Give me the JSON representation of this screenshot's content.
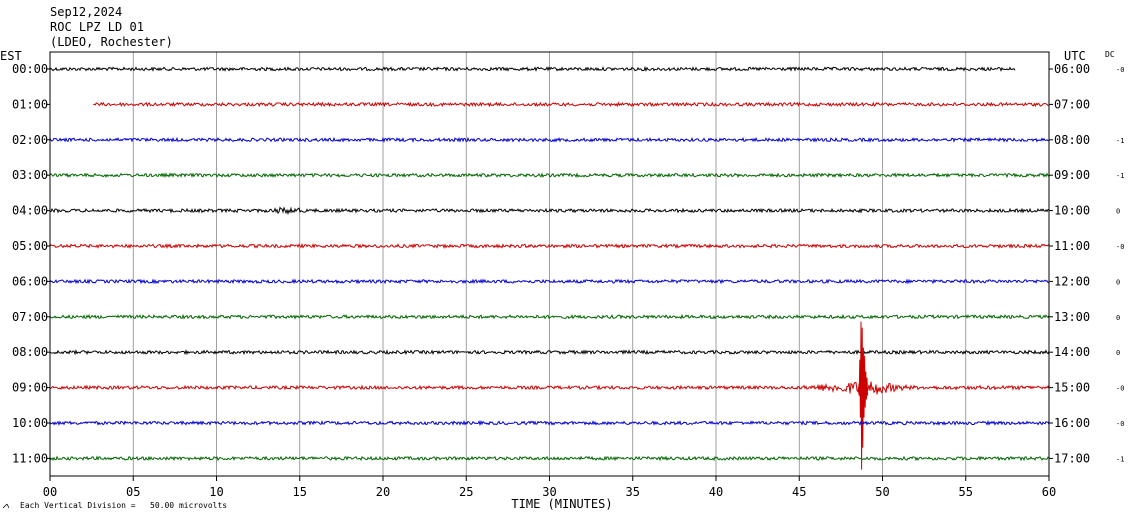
{
  "header": {
    "date": "Sep12,2024",
    "station": "ROC LPZ LD 01",
    "network": "(LDEO, Rochester)"
  },
  "left_axis_label": "EST",
  "right_axis_label": "UTC",
  "dc_label": "DC",
  "footer": {
    "scale_note": "Each Vertical Division =   50.00 microvolts"
  },
  "colors": {
    "black": "#000000",
    "red": "#cc0000",
    "blue": "#0000cc",
    "green": "#006600",
    "grid": "#888888"
  },
  "chart_data": {
    "type": "line",
    "title": "",
    "xlabel": "TIME (MINUTES)",
    "ylabel": "",
    "xlim": [
      0,
      60
    ],
    "x_ticks": [
      "00",
      "05",
      "10",
      "15",
      "20",
      "25",
      "30",
      "35",
      "40",
      "45",
      "50",
      "55",
      "60"
    ],
    "grid": true,
    "series": [
      {
        "left": "00:00",
        "right": "06:00",
        "color": "black",
        "start": 0.0,
        "end": 58.0,
        "dc": "-0"
      },
      {
        "left": "01:00",
        "right": "07:00",
        "color": "red",
        "start": 2.6,
        "end": 60.0,
        "dc": ""
      },
      {
        "left": "02:00",
        "right": "08:00",
        "color": "blue",
        "start": 0.0,
        "end": 60.0,
        "dc": "-1"
      },
      {
        "left": "03:00",
        "right": "09:00",
        "color": "green",
        "start": 0.0,
        "end": 60.0,
        "dc": "-1"
      },
      {
        "left": "04:00",
        "right": "10:00",
        "color": "black",
        "start": 0.0,
        "end": 60.0,
        "dc": "0"
      },
      {
        "left": "05:00",
        "right": "11:00",
        "color": "red",
        "start": 0.0,
        "end": 60.0,
        "dc": "-0"
      },
      {
        "left": "06:00",
        "right": "12:00",
        "color": "blue",
        "start": 0.0,
        "end": 60.0,
        "dc": "0"
      },
      {
        "left": "07:00",
        "right": "13:00",
        "color": "green",
        "start": 0.0,
        "end": 60.0,
        "dc": "0"
      },
      {
        "left": "08:00",
        "right": "14:00",
        "color": "black",
        "start": 0.0,
        "end": 60.0,
        "dc": "0"
      },
      {
        "left": "09:00",
        "right": "15:00",
        "color": "red",
        "start": 0.0,
        "end": 60.0,
        "dc": "-0"
      },
      {
        "left": "10:00",
        "right": "16:00",
        "color": "blue",
        "start": 0.0,
        "end": 60.0,
        "dc": "-0"
      },
      {
        "left": "11:00",
        "right": "17:00",
        "color": "green",
        "start": 0.0,
        "end": 60.0,
        "dc": "-1"
      }
    ],
    "events": [
      {
        "row": 9,
        "onset_minute": 45.0,
        "peak_minute": 48.6,
        "end_minute": 60.0
      },
      {
        "row": 4,
        "onset_minute": 13.3,
        "peak_minute": 14.1,
        "end_minute": 15.0
      }
    ]
  }
}
